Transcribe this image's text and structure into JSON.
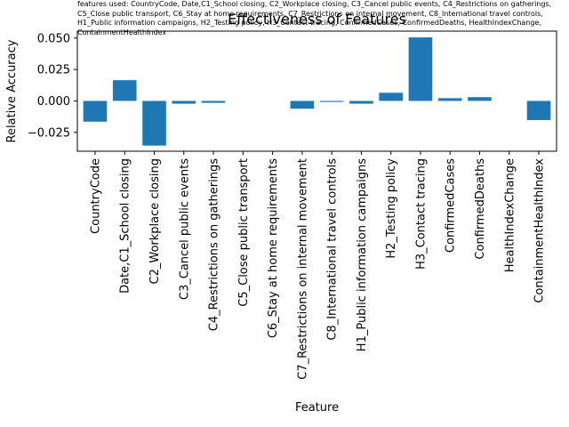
{
  "chart_data": {
    "type": "bar",
    "title": "Effectiveness of Features",
    "note": "features used: CountryCode, Date,C1_School closing, C2_Workplace closing, C3_Cancel public events, C4_Restrictions on gatherings, C5_Close public transport, C6_Stay at home requirements, C7_Restrictions on internal movement, C8_International travel controls, H1_Public information campaigns, H2_Testing policy, H3_Contact tracing, ConfirmedCases, ConfirmedDeaths, HealthIndexChange, ContainmentHealthIndex",
    "xlabel": "Feature",
    "ylabel": "Relative Accuracy",
    "categories": [
      "CountryCode",
      "Date,C1_School closing",
      "C2_Workplace closing",
      "C3_Cancel public events",
      "C4_Restrictions on gatherings",
      "C5_Close public transport",
      "C6_Stay at home requirements",
      "C7_Restrictions on internal movement",
      "C8_International travel controls",
      "H1_Public information campaigns",
      "H2_Testing policy",
      "H3_Contact tracing",
      "ConfirmedCases",
      "ConfirmedDeaths",
      "HealthIndexChange",
      "ContainmentHealthIndex"
    ],
    "values": [
      -0.0165,
      0.0165,
      -0.0355,
      -0.0022,
      -0.0015,
      0.0,
      0.0,
      -0.0062,
      -0.0008,
      -0.0022,
      0.0065,
      0.0505,
      0.0022,
      0.003,
      0.0,
      -0.0152
    ],
    "yticks": [
      -0.025,
      0.0,
      0.025,
      0.05
    ],
    "ytick_labels": [
      "−0.025",
      "0.000",
      "0.025",
      "0.050"
    ],
    "ylim": [
      -0.04,
      0.0555
    ],
    "bar_color": "#1f77b4",
    "grid": false
  }
}
